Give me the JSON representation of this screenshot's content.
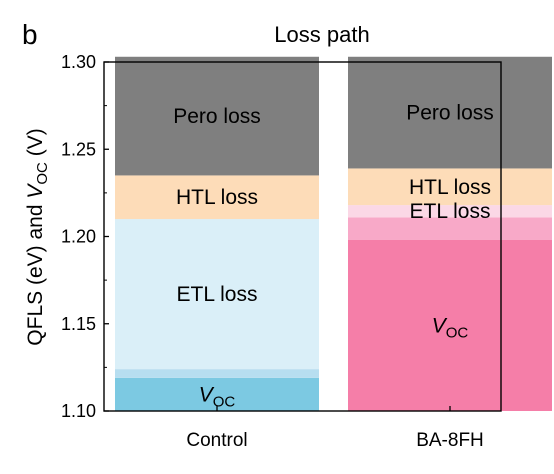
{
  "panel_label": "b",
  "chart_data": {
    "type": "bar",
    "stacked": true,
    "title": "Loss path",
    "ylabel_prefix": "QFLS (eV) and ",
    "ylabel_var": "V",
    "ylabel_sub": "OC",
    "ylabel_suffix": " (V)",
    "ylim": [
      1.1,
      1.3
    ],
    "yticks": [
      "1.10",
      "1.15",
      "1.20",
      "1.25",
      "1.30"
    ],
    "grid": false,
    "categories": [
      "Control",
      "BA-8FH"
    ],
    "bars": [
      {
        "category": "Control",
        "top": 1.303,
        "segments": [
          {
            "label": "V",
            "sub": "OC",
            "from": 1.1,
            "to": 1.119,
            "color": "#7cc9e2"
          },
          {
            "label": "",
            "from": 1.119,
            "to": 1.124,
            "color": "#b7def0"
          },
          {
            "label": "ETL loss",
            "from": 1.124,
            "to": 1.21,
            "color": "#daeff8"
          },
          {
            "label": "HTL loss",
            "from": 1.21,
            "to": 1.235,
            "color": "#fddcb8"
          },
          {
            "label": "Pero loss",
            "from": 1.235,
            "to": 1.303,
            "color": "#7f7f7f"
          }
        ]
      },
      {
        "category": "BA-8FH",
        "top": 1.303,
        "segments": [
          {
            "label": "V",
            "sub": "OC",
            "from": 1.1,
            "to": 1.198,
            "color": "#f57ea8"
          },
          {
            "label": "",
            "from": 1.198,
            "to": 1.211,
            "color": "#f8a9c8"
          },
          {
            "label": "ETL loss",
            "from": 1.211,
            "to": 1.218,
            "color": "#fbd8e6"
          },
          {
            "label": "HTL loss",
            "from": 1.218,
            "to": 1.239,
            "color": "#fddcb8"
          },
          {
            "label": "Pero loss",
            "from": 1.239,
            "to": 1.303,
            "color": "#7f7f7f"
          }
        ]
      }
    ]
  }
}
